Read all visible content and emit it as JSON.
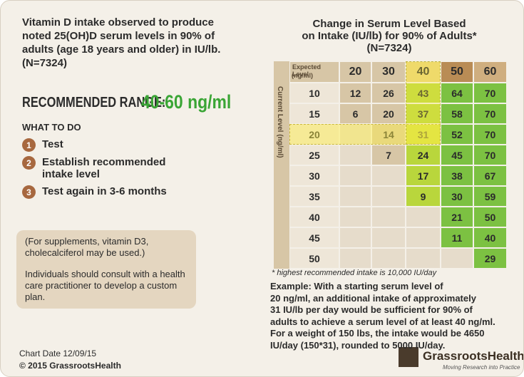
{
  "intro_lines": [
    "Vitamin D intake observed to produce",
    "noted 25(OH)D serum levels in 90% of",
    "adults (age 18 years and older) in IU/lb.",
    "(N=7324)"
  ],
  "recommended": {
    "label": "RECOMMENDED RANGE:",
    "value": "40-60 ng/ml"
  },
  "what_to_do": {
    "heading": "WHAT TO DO",
    "steps": [
      {
        "number": "1",
        "text": "Test"
      },
      {
        "number": "2",
        "text": "Establish recommended intake level"
      },
      {
        "number": "3",
        "text": "Test again in 3-6 months"
      }
    ]
  },
  "note": [
    "(For supplements, vitamin D3, cholecalciferol may be used.)",
    "Individuals should consult with a health care practitioner to develop a custom plan."
  ],
  "footer": {
    "chart_date": "Chart Date 12/09/15",
    "copyright": "© 2015 GrassrootsHealth"
  },
  "table": {
    "title_lines": [
      "Change in Serum Level Based",
      "on Intake (IU/lb) for 90% of Adults*",
      "(N=7324)"
    ],
    "column_header_label": "Expected Level",
    "column_header_unit": "(ng/ml)",
    "row_header_label": "Current Level (ng/ml)",
    "columns": [
      "20",
      "30",
      "40",
      "50",
      "60"
    ],
    "rows": [
      {
        "level": "10",
        "cells": [
          12,
          26,
          43,
          64,
          70
        ]
      },
      {
        "level": "15",
        "cells": [
          6,
          20,
          37,
          58,
          70
        ]
      },
      {
        "level": "20",
        "cells": [
          null,
          14,
          31,
          52,
          70
        ]
      },
      {
        "level": "25",
        "cells": [
          null,
          7,
          24,
          45,
          70
        ]
      },
      {
        "level": "30",
        "cells": [
          null,
          null,
          17,
          38,
          67
        ]
      },
      {
        "level": "35",
        "cells": [
          null,
          null,
          9,
          30,
          59
        ]
      },
      {
        "level": "40",
        "cells": [
          null,
          null,
          null,
          21,
          50
        ]
      },
      {
        "level": "45",
        "cells": [
          null,
          null,
          null,
          11,
          40
        ]
      },
      {
        "level": "50",
        "cells": [
          null,
          null,
          null,
          null,
          29
        ]
      }
    ],
    "footnote": "* highest recommended intake is 10,000 IU/day"
  },
  "example_lines": [
    "Example: With a starting serum level of",
    "20 ng/ml, an additional intake of approximately",
    "31 IU/lb per day would be sufficient for 90% of",
    "adults to achieve a serum level of at least 40 ng/ml.",
    "For a weight of 150 lbs, the intake would be 4650",
    "IU/day (150*31), rounded to 5000 IU/day."
  ],
  "logo": {
    "name": "GrassrootsHealth",
    "tagline": "Moving Research into Practice"
  }
}
